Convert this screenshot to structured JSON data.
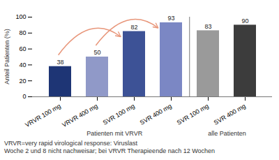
{
  "chart_data": {
    "type": "bar",
    "categories": [
      "VRVR 100 mg",
      "VRVR 400 mg",
      "SVR 100 mg",
      "SVR 400 mg",
      "SVR 100 mg",
      "SVR 400 mg"
    ],
    "values": [
      38,
      50,
      82,
      93,
      83,
      90
    ],
    "colors": [
      "#1e3575",
      "#9099c8",
      "#3d5296",
      "#7b87c4",
      "#9a9a9a",
      "#3c3c3c"
    ],
    "groups": [
      "Patienten mit VRVR",
      "Patienten mit VRVR",
      "Patienten mit VRVR",
      "Patienten mit VRVR",
      "alle Patienten",
      "alle Patienten"
    ],
    "ylabel": "Anteil Patienten (%)",
    "ylim": [
      0,
      100
    ],
    "yticks": [
      0,
      20,
      40,
      60,
      80,
      100
    ],
    "grid": false,
    "data_labels": true,
    "annotations": [
      {
        "type": "arrow",
        "from": 0,
        "to": 2,
        "color": "#e8967a"
      },
      {
        "type": "arrow",
        "from": 1,
        "to": 3,
        "color": "#e8967a"
      }
    ],
    "footnotes": [
      "VRVR=very rapid virological response: Viruslast",
      "Woche 2 und 8 nicht nachweisar; bei VRVR Therapieende nach 12 Wochen"
    ]
  }
}
